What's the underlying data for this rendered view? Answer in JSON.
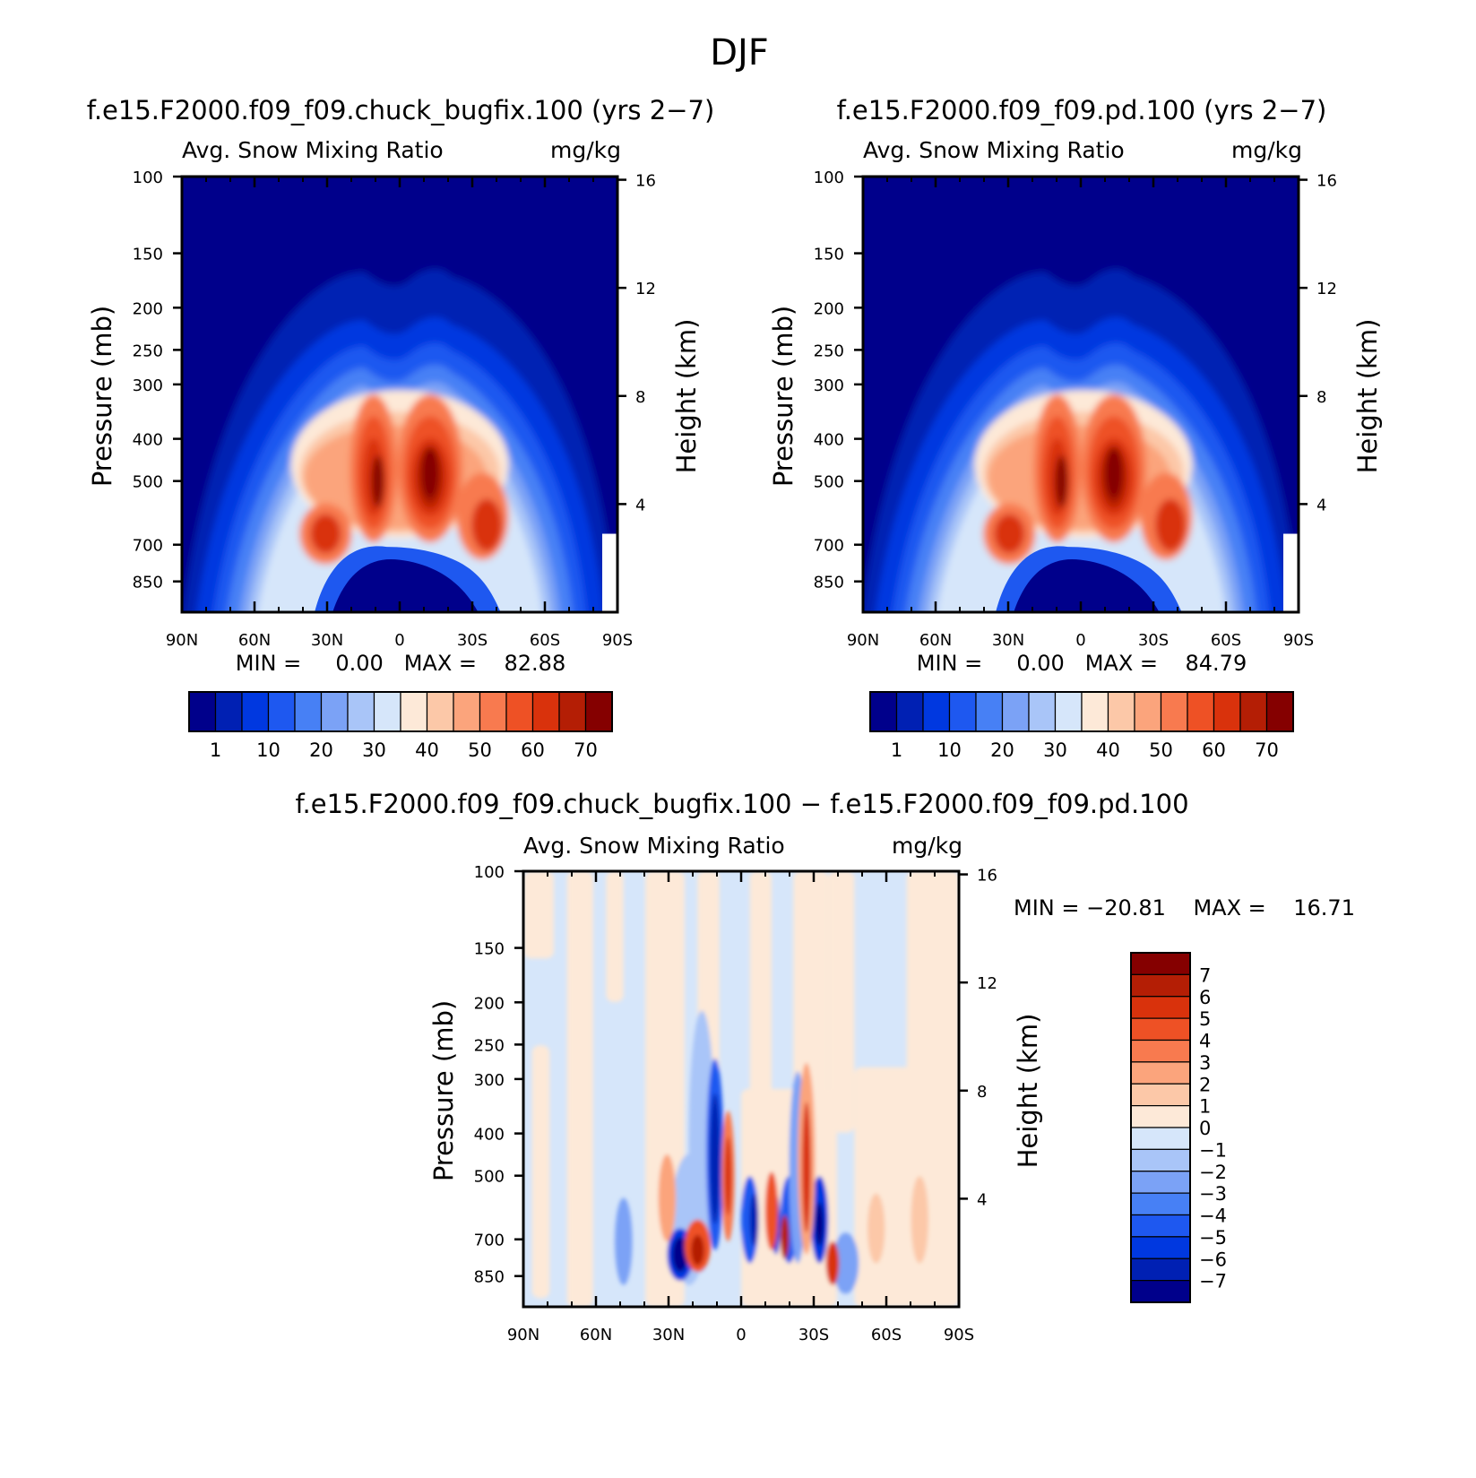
{
  "figure": {
    "title": "DJF",
    "panel_a": {
      "title": "f.e15.F2000.f09_f09.chuck_bugfix.100 (yrs 2−7)",
      "left_label": "Avg. Snow Mixing Ratio",
      "right_label": "mg/kg",
      "min_max": "MIN =     0.00   MAX =    82.88"
    },
    "panel_b": {
      "title": "f.e15.F2000.f09_f09.pd.100 (yrs 2−7)",
      "left_label": "Avg. Snow Mixing Ratio",
      "right_label": "mg/kg",
      "min_max": "MIN =     0.00   MAX =    84.79"
    },
    "panel_c": {
      "title": "f.e15.F2000.f09_f09.chuck_bugfix.100 − f.e15.F2000.f09_f09.pd.100",
      "left_label": "Avg. Snow Mixing Ratio",
      "right_label": "mg/kg",
      "min_max": "MIN = −20.81    MAX =    16.71"
    },
    "y_axis_label": "Pressure (mb)",
    "y2_axis_label": "Height (km)"
  },
  "chart_data": [
    {
      "type": "heatmap",
      "panel": "panel_a",
      "title": "f.e15.F2000.f09_f09.chuck_bugfix.100 (yrs 2−7)",
      "x_ticks": [
        "90N",
        "60N",
        "30N",
        "0",
        "30S",
        "60S",
        "90S"
      ],
      "x_values": [
        90,
        60,
        30,
        0,
        -30,
        -60,
        -90
      ],
      "y_ticks": [
        100,
        150,
        200,
        250,
        300,
        400,
        500,
        700,
        850
      ],
      "y_scale": "log pressure",
      "ylim": [
        100,
        1000
      ],
      "y2_ticks": [
        16,
        12,
        8,
        4
      ],
      "contour_levels": [
        1,
        5,
        10,
        15,
        20,
        25,
        30,
        35,
        40,
        45,
        50,
        55,
        60,
        65,
        70
      ],
      "colorbar_labels": [
        "1",
        "10",
        "20",
        "30",
        "40",
        "50",
        "60",
        "70"
      ],
      "colorbar_orientation": "horizontal",
      "min": 0.0,
      "max": 82.88
    },
    {
      "type": "heatmap",
      "panel": "panel_b",
      "title": "f.e15.F2000.f09_f09.pd.100 (yrs 2−7)",
      "x_ticks": [
        "90N",
        "60N",
        "30N",
        "0",
        "30S",
        "60S",
        "90S"
      ],
      "x_values": [
        90,
        60,
        30,
        0,
        -30,
        -60,
        -90
      ],
      "y_ticks": [
        100,
        150,
        200,
        250,
        300,
        400,
        500,
        700,
        850
      ],
      "y_scale": "log pressure",
      "ylim": [
        100,
        1000
      ],
      "y2_ticks": [
        16,
        12,
        8,
        4
      ],
      "contour_levels": [
        1,
        5,
        10,
        15,
        20,
        25,
        30,
        35,
        40,
        45,
        50,
        55,
        60,
        65,
        70
      ],
      "colorbar_labels": [
        "1",
        "10",
        "20",
        "30",
        "40",
        "50",
        "60",
        "70"
      ],
      "colorbar_orientation": "horizontal",
      "min": 0.0,
      "max": 84.79
    },
    {
      "type": "heatmap",
      "panel": "panel_c",
      "title": "f.e15.F2000.f09_f09.chuck_bugfix.100 − f.e15.F2000.f09_f09.pd.100",
      "x_ticks": [
        "90N",
        "60N",
        "30N",
        "0",
        "30S",
        "60S",
        "90S"
      ],
      "x_values": [
        90,
        60,
        30,
        0,
        -30,
        -60,
        -90
      ],
      "y_ticks": [
        100,
        150,
        200,
        250,
        300,
        400,
        500,
        700,
        850
      ],
      "y_scale": "log pressure",
      "ylim": [
        100,
        1000
      ],
      "y2_ticks": [
        16,
        12,
        8,
        4
      ],
      "contour_levels": [
        -7,
        -6,
        -5,
        -4,
        -3,
        -2,
        -1,
        0,
        1,
        2,
        3,
        4,
        5,
        6,
        7
      ],
      "colorbar_labels": [
        "7",
        "6",
        "5",
        "4",
        "3",
        "2",
        "1",
        "0",
        "−1",
        "−2",
        "−3",
        "−4",
        "−5",
        "−6",
        "−7"
      ],
      "colorbar_orientation": "vertical",
      "min": -20.81,
      "max": 16.71
    }
  ],
  "colors": {
    "abs_palette": [
      "#00008b",
      "#0020b3",
      "#0038e0",
      "#1e58f0",
      "#4780f5",
      "#7ba2f6",
      "#a9c5f8",
      "#d6e6fa",
      "#fde9d8",
      "#fcc8a8",
      "#fba47c",
      "#f87a4f",
      "#ee5125",
      "#d9320c",
      "#b41e05",
      "#850000"
    ],
    "diff_palette": [
      "#850000",
      "#b41e05",
      "#d9320c",
      "#ee5125",
      "#f87a4f",
      "#fba47c",
      "#fcc8a8",
      "#fde9d8",
      "#d6e6fa",
      "#a9c5f8",
      "#7ba2f6",
      "#4780f5",
      "#1e58f0",
      "#0038e0",
      "#0020b3",
      "#00008b"
    ]
  }
}
